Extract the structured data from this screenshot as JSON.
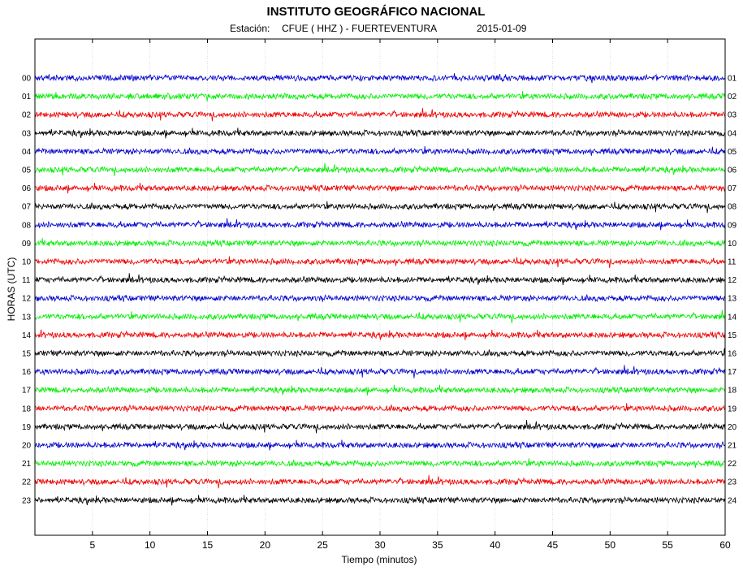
{
  "header": {
    "title": "INSTITUTO GEOGRÁFICO NACIONAL",
    "station_prefix": "Estación:",
    "station": "CFUE ( HHZ ) - FUERTEVENTURA",
    "date": "2015-01-09"
  },
  "chart_data": {
    "type": "line",
    "title": "INSTITUTO GEOGRÁFICO NACIONAL",
    "xlabel": "Tiempo (minutos)",
    "ylabel": "HORAS (UTC)",
    "xlim": [
      0,
      60
    ],
    "x_ticks": [
      5,
      10,
      15,
      20,
      25,
      30,
      35,
      40,
      45,
      50,
      55,
      60
    ],
    "x_grid": true,
    "left_hour_labels": [
      "00",
      "01",
      "02",
      "03",
      "04",
      "05",
      "06",
      "07",
      "08",
      "09",
      "10",
      "11",
      "12",
      "13",
      "14",
      "15",
      "16",
      "17",
      "18",
      "19",
      "20",
      "21",
      "22",
      "23"
    ],
    "right_hour_labels": [
      "01",
      "02",
      "03",
      "04",
      "05",
      "06",
      "07",
      "08",
      "09",
      "10",
      "11",
      "12",
      "13",
      "14",
      "15",
      "16",
      "17",
      "18",
      "19",
      "20",
      "21",
      "22",
      "23",
      "24"
    ],
    "trace_colors": [
      "#0000cc",
      "#00ee00",
      "#ee0000",
      "#000000"
    ],
    "trace_count": 24
  }
}
